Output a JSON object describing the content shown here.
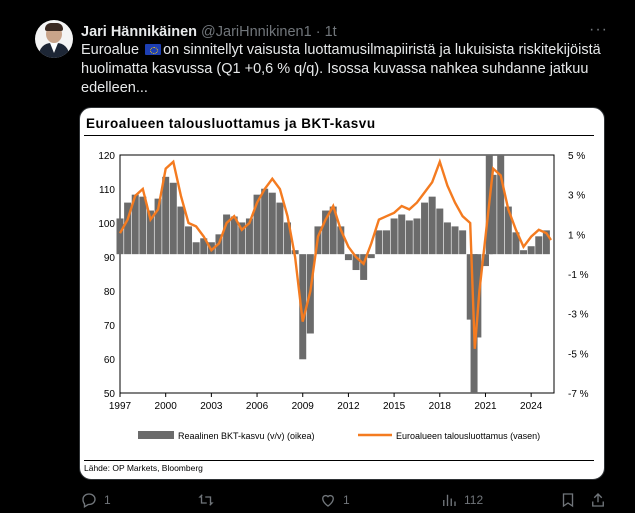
{
  "tweet": {
    "author_name": "Jari Hännikäinen",
    "author_handle": "@JariHnnikinen1 · 1t",
    "text_before_flag": "Euroalue",
    "text_after_flag": "on sinnitellyt vaisusta luottamusilmapiiristä ja lukuisista riskitekijöistä huolimatta kasvussa (Q1 +0,6 % q/q). Isossa kuvassa nahkea suhdanne jatkuu edelleen...",
    "more_label": "···"
  },
  "actions": {
    "reply_count": "1",
    "retweet_count": "",
    "like_count": "1",
    "views_count": "112"
  },
  "icons": {
    "reply": "reply-icon",
    "retweet": "retweet-icon",
    "like": "heart-icon",
    "views": "views-icon",
    "bookmark": "bookmark-icon",
    "share": "share-icon"
  },
  "colors": {
    "bars": "#6b6b6b",
    "line": "#f47b20",
    "muted": "#71767b"
  },
  "chart_data": {
    "type": "bar",
    "title": "Euroalueen talousluottamus ja BKT-kasvu",
    "source": "Lähde: OP Markets, Bloomberg",
    "x_ticks": [
      "1997",
      "2000",
      "2003",
      "2006",
      "2009",
      "2012",
      "2015",
      "2018",
      "2021",
      "2024"
    ],
    "y_left_ticks": [
      "120",
      "110",
      "100",
      "90",
      "80",
      "70",
      "60",
      "50"
    ],
    "y_right_ticks": [
      "5 %",
      "3 %",
      "1 %",
      "-1 %",
      "-3 %",
      "-5 %",
      "-7 %"
    ],
    "y_left_range": [
      50,
      120
    ],
    "y_right_range": [
      -7,
      5
    ],
    "x_range": [
      1997,
      2025.5
    ],
    "series": [
      {
        "name": "Reaalinen BKT-kasvu (v/v) (oikea)",
        "type": "bar",
        "axis": "right",
        "x": [
          1997.0,
          1997.5,
          1998.0,
          1998.5,
          1999.0,
          1999.5,
          2000.0,
          2000.5,
          2001.0,
          2001.5,
          2002.0,
          2002.5,
          2003.0,
          2003.5,
          2004.0,
          2004.5,
          2005.0,
          2005.5,
          2006.0,
          2006.5,
          2007.0,
          2007.5,
          2008.0,
          2008.5,
          2009.0,
          2009.5,
          2010.0,
          2010.5,
          2011.0,
          2011.5,
          2012.0,
          2012.5,
          2013.0,
          2013.5,
          2014.0,
          2014.5,
          2015.0,
          2015.5,
          2016.0,
          2016.5,
          2017.0,
          2017.5,
          2018.0,
          2018.5,
          2019.0,
          2019.5,
          2020.0,
          2020.25,
          2020.5,
          2021.0,
          2021.25,
          2021.5,
          2022.0,
          2022.5,
          2023.0,
          2023.5,
          2024.0,
          2024.5,
          2025.0
        ],
        "values": [
          1.8,
          2.6,
          3.0,
          2.9,
          2.2,
          2.8,
          3.9,
          3.6,
          2.4,
          1.4,
          0.6,
          0.8,
          0.6,
          1.0,
          2.0,
          1.9,
          1.6,
          1.8,
          3.0,
          3.3,
          3.1,
          2.6,
          1.6,
          0.2,
          -5.3,
          -4.0,
          1.4,
          2.2,
          2.4,
          1.4,
          -0.3,
          -0.8,
          -1.3,
          -0.2,
          1.2,
          1.2,
          1.8,
          2.0,
          1.7,
          1.8,
          2.6,
          2.9,
          2.3,
          1.6,
          1.4,
          1.2,
          -3.3,
          -7.0,
          -4.2,
          -0.6,
          5.0,
          4.0,
          5.0,
          2.4,
          1.1,
          0.2,
          0.4,
          0.9,
          1.2
        ]
      },
      {
        "name": "Euroalueen talousluottamus (vasen)",
        "type": "line",
        "axis": "left",
        "x": [
          1997.0,
          1997.5,
          1998.0,
          1998.5,
          1999.0,
          1999.5,
          2000.0,
          2000.5,
          2001.0,
          2001.5,
          2002.0,
          2002.5,
          2003.0,
          2003.5,
          2004.0,
          2004.5,
          2005.0,
          2005.5,
          2006.0,
          2006.5,
          2007.0,
          2007.5,
          2008.0,
          2008.5,
          2009.0,
          2009.5,
          2010.0,
          2010.5,
          2011.0,
          2011.5,
          2012.0,
          2012.5,
          2013.0,
          2013.5,
          2014.0,
          2014.5,
          2015.0,
          2015.5,
          2016.0,
          2016.5,
          2017.0,
          2017.5,
          2018.0,
          2018.5,
          2019.0,
          2019.5,
          2020.0,
          2020.3,
          2020.6,
          2021.0,
          2021.5,
          2022.0,
          2022.5,
          2023.0,
          2023.5,
          2024.0,
          2024.5,
          2025.0,
          2025.3
        ],
        "values": [
          97,
          101,
          108,
          110,
          101,
          104,
          116,
          118,
          108,
          100,
          99,
          96,
          92,
          94,
          100,
          102,
          98,
          100,
          106,
          110,
          113,
          110,
          102,
          90,
          71,
          80,
          96,
          101,
          105,
          98,
          93,
          90,
          88,
          94,
          101,
          102,
          103,
          105,
          104,
          106,
          109,
          112,
          118,
          111,
          106,
          102,
          100,
          63,
          80,
          96,
          116,
          114,
          104,
          98,
          93,
          96,
          98,
          97,
          95
        ]
      }
    ]
  }
}
